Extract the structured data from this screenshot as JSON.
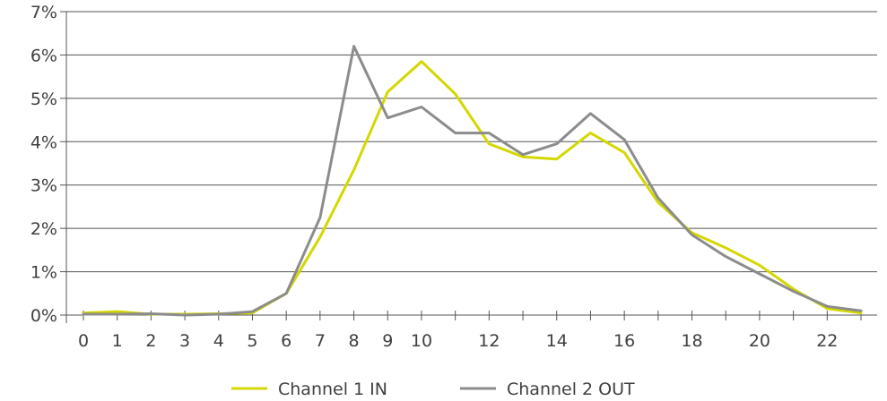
{
  "chart_data": {
    "type": "line",
    "title": "",
    "xlabel": "",
    "ylabel": "",
    "x": [
      0,
      1,
      2,
      3,
      4,
      5,
      6,
      7,
      8,
      9,
      10,
      11,
      12,
      13,
      14,
      15,
      16,
      17,
      18,
      19,
      20,
      21,
      22,
      23
    ],
    "x_tick_labels": [
      "0",
      "1",
      "2",
      "3",
      "4",
      "5",
      "6",
      "7",
      "8",
      "9",
      "10",
      "12",
      "14",
      "16",
      "18",
      "20",
      "22"
    ],
    "x_tick_values": [
      0,
      1,
      2,
      3,
      4,
      5,
      6,
      7,
      8,
      9,
      10,
      12,
      14,
      16,
      18,
      20,
      22
    ],
    "y_tick_labels": [
      "0%",
      "1%",
      "2%",
      "3%",
      "4%",
      "5%",
      "6%",
      "7%"
    ],
    "y_tick_values": [
      0,
      1,
      2,
      3,
      4,
      5,
      6,
      7
    ],
    "xlim": [
      -0.5,
      23.5
    ],
    "ylim": [
      0,
      7
    ],
    "grid": "horizontal",
    "legend_position": "bottom",
    "series": [
      {
        "name": "Channel 1 IN",
        "color": "#d4d800",
        "values": [
          0.05,
          0.08,
          0.02,
          0.02,
          0.03,
          0.05,
          0.5,
          1.8,
          3.35,
          5.15,
          5.85,
          5.1,
          3.95,
          3.65,
          3.6,
          4.2,
          3.75,
          2.6,
          1.9,
          1.55,
          1.15,
          0.6,
          0.15,
          0.05
        ]
      },
      {
        "name": "Channel 2 OUT",
        "color": "#8c8c8c",
        "values": [
          0.02,
          0.02,
          0.03,
          0.0,
          0.02,
          0.08,
          0.5,
          2.25,
          6.2,
          4.55,
          4.8,
          4.2,
          4.2,
          3.7,
          3.95,
          4.65,
          4.05,
          2.7,
          1.85,
          1.35,
          0.95,
          0.55,
          0.2,
          0.1
        ]
      }
    ]
  }
}
